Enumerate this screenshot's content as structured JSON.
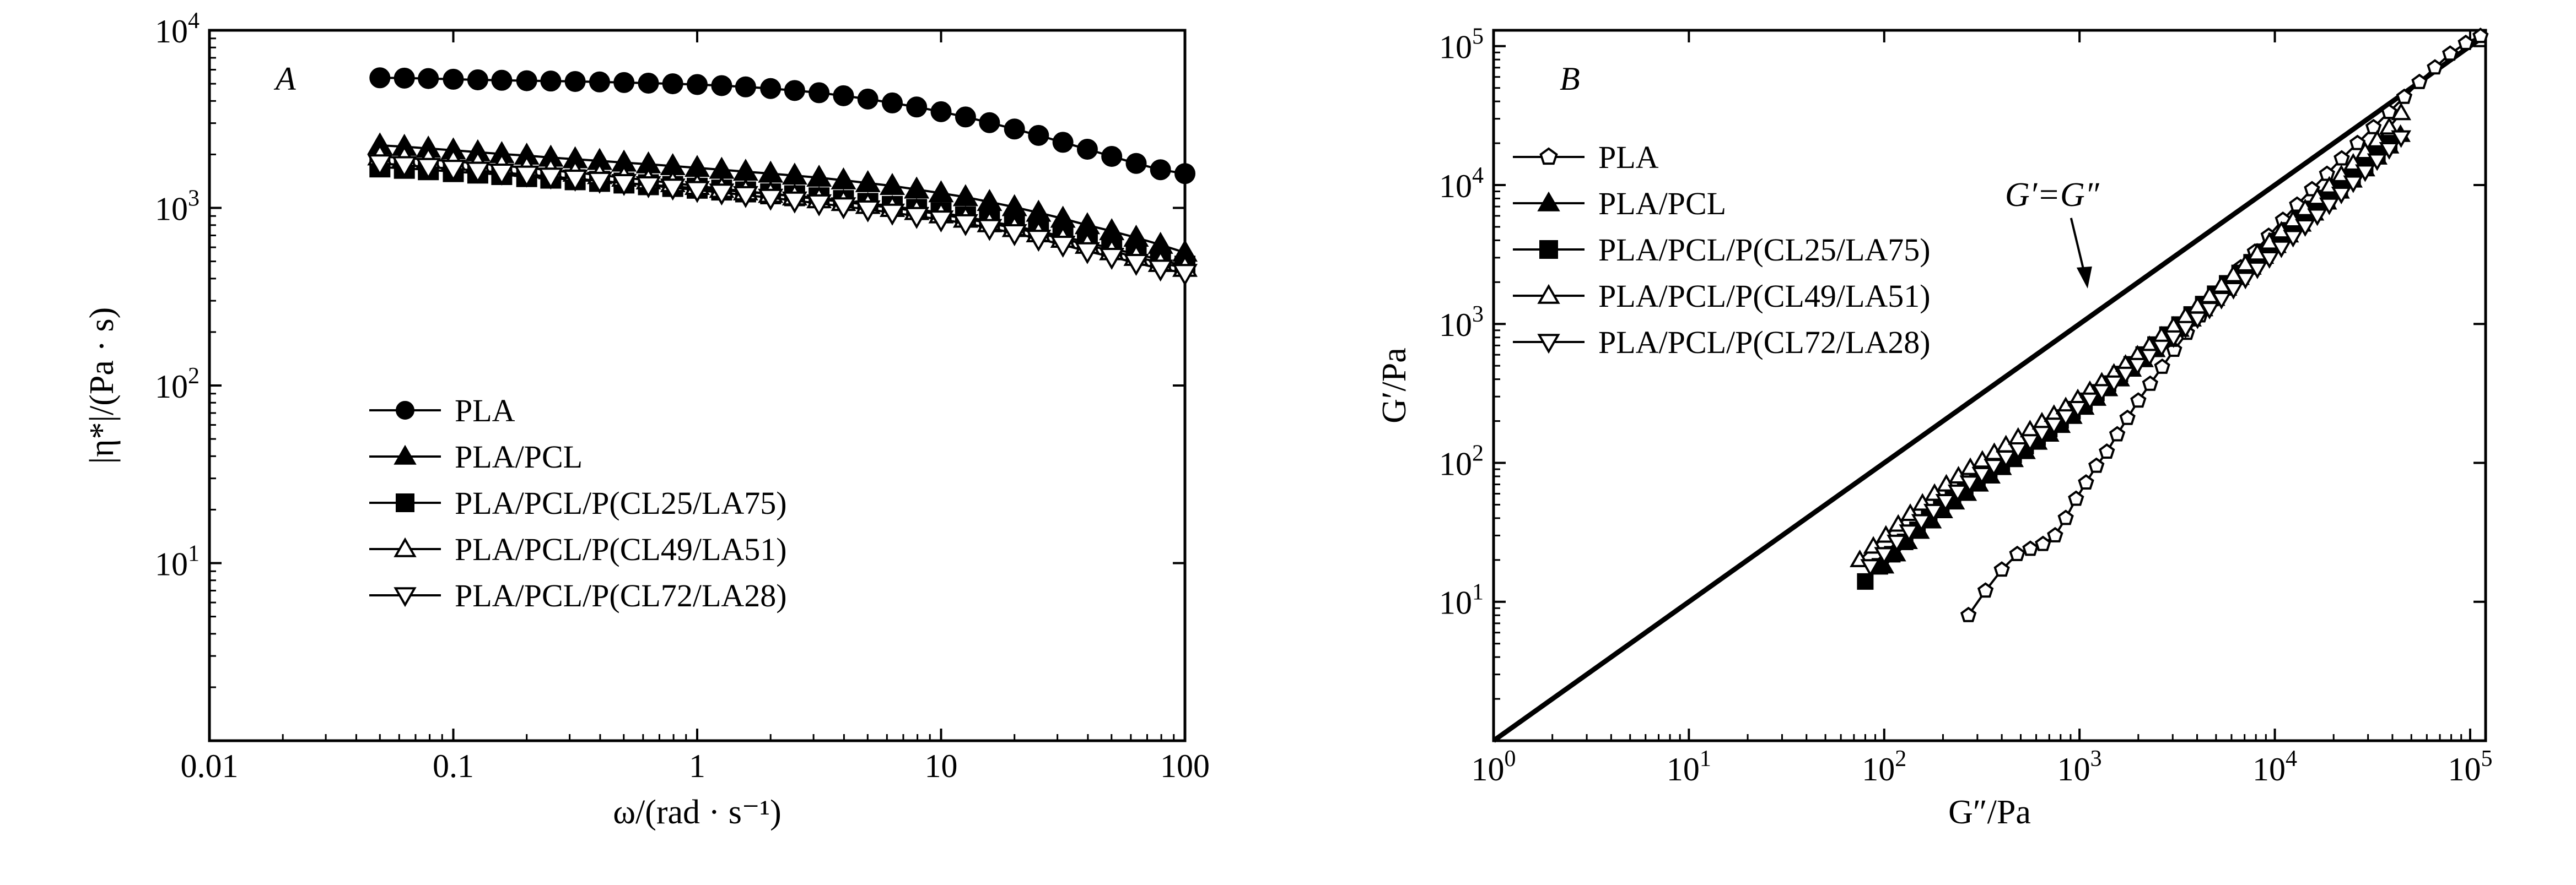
{
  "chart_data": [
    {
      "type": "line",
      "panel_label": "A",
      "xlabel": "ω/(rad · s⁻¹)",
      "ylabel": "|η*|/(Pa · s)",
      "x_scale": "log",
      "y_scale": "log",
      "xlim": [
        0.01,
        100
      ],
      "ylim": [
        1,
        10000
      ],
      "x_ticks": [
        {
          "value": 0.01,
          "label": "0.01"
        },
        {
          "value": 0.1,
          "label": "0.1"
        },
        {
          "value": 1,
          "label": "1"
        },
        {
          "value": 10,
          "label": "10"
        },
        {
          "value": 100,
          "label": "100"
        }
      ],
      "y_ticks": [
        {
          "value": 10,
          "base": "10",
          "exp": "1"
        },
        {
          "value": 100,
          "base": "10",
          "exp": "2"
        },
        {
          "value": 1000,
          "base": "10",
          "exp": "3"
        },
        {
          "value": 10000,
          "base": "10",
          "exp": "4"
        }
      ],
      "grid": false,
      "legend_position": "lower-center",
      "series": [
        {
          "name": "PLA",
          "marker": "circle-filled",
          "x": [
            0.05,
            0.063,
            0.079,
            0.1,
            0.126,
            0.158,
            0.2,
            0.251,
            0.316,
            0.398,
            0.501,
            0.631,
            0.794,
            1,
            1.26,
            1.58,
            2,
            2.51,
            3.16,
            3.98,
            5.01,
            6.31,
            7.94,
            10,
            12.6,
            15.8,
            20,
            25.1,
            31.6,
            39.8,
            50.1,
            63.1,
            79.4,
            100
          ],
          "y": [
            5400,
            5380,
            5350,
            5300,
            5260,
            5230,
            5200,
            5180,
            5150,
            5120,
            5080,
            5040,
            5000,
            4950,
            4880,
            4800,
            4700,
            4580,
            4450,
            4280,
            4100,
            3900,
            3700,
            3480,
            3250,
            3020,
            2780,
            2560,
            2340,
            2140,
            1950,
            1780,
            1640,
            1560
          ]
        },
        {
          "name": "PLA/PCL",
          "marker": "triangle-up-filled",
          "x": [
            0.05,
            0.063,
            0.079,
            0.1,
            0.126,
            0.158,
            0.2,
            0.251,
            0.316,
            0.398,
            0.501,
            0.631,
            0.794,
            1,
            1.26,
            1.58,
            2,
            2.51,
            3.16,
            3.98,
            5.01,
            6.31,
            7.94,
            10,
            12.6,
            15.8,
            20,
            25.1,
            31.6,
            39.8,
            50.1,
            63.1,
            79.4,
            100
          ],
          "y": [
            2250,
            2210,
            2160,
            2110,
            2060,
            2010,
            1970,
            1920,
            1880,
            1840,
            1800,
            1760,
            1720,
            1680,
            1640,
            1600,
            1560,
            1520,
            1480,
            1430,
            1380,
            1330,
            1270,
            1210,
            1150,
            1080,
            1010,
            940,
            870,
            800,
            740,
            680,
            620,
            560
          ]
        },
        {
          "name": "PLA/PCL/P(CL25/LA75)",
          "marker": "square-filled",
          "x": [
            0.05,
            0.063,
            0.079,
            0.1,
            0.126,
            0.158,
            0.2,
            0.251,
            0.316,
            0.398,
            0.501,
            0.631,
            0.794,
            1,
            1.26,
            1.58,
            2,
            2.51,
            3.16,
            3.98,
            5.01,
            6.31,
            7.94,
            10,
            12.6,
            15.8,
            20,
            25.1,
            31.6,
            39.8,
            50.1,
            63.1,
            79.4,
            100
          ],
          "y": [
            1700,
            1670,
            1640,
            1600,
            1570,
            1540,
            1500,
            1470,
            1440,
            1410,
            1380,
            1350,
            1320,
            1290,
            1260,
            1230,
            1200,
            1170,
            1140,
            1100,
            1060,
            1020,
            980,
            940,
            890,
            840,
            790,
            740,
            690,
            640,
            590,
            550,
            510,
            470
          ]
        },
        {
          "name": "PLA/PCL/P(CL49/LA51)",
          "marker": "triangle-up-open",
          "x": [
            0.05,
            0.063,
            0.079,
            0.1,
            0.126,
            0.158,
            0.2,
            0.251,
            0.316,
            0.398,
            0.501,
            0.631,
            0.794,
            1,
            1.26,
            1.58,
            2,
            2.51,
            3.16,
            3.98,
            5.01,
            6.31,
            7.94,
            10,
            12.6,
            15.8,
            20,
            25.1,
            31.6,
            39.8,
            50.1,
            63.1,
            79.4,
            100
          ],
          "y": [
            1950,
            1910,
            1870,
            1830,
            1780,
            1730,
            1680,
            1630,
            1580,
            1530,
            1480,
            1430,
            1380,
            1330,
            1280,
            1240,
            1200,
            1160,
            1120,
            1080,
            1040,
            1000,
            960,
            920,
            870,
            820,
            770,
            720,
            670,
            620,
            570,
            530,
            490,
            460
          ]
        },
        {
          "name": "PLA/PCL/P(CL72/LA28)",
          "marker": "triangle-down-open",
          "x": [
            0.05,
            0.063,
            0.079,
            0.1,
            0.126,
            0.158,
            0.2,
            0.251,
            0.316,
            0.398,
            0.501,
            0.631,
            0.794,
            1,
            1.26,
            1.58,
            2,
            2.51,
            3.16,
            3.98,
            5.01,
            6.31,
            7.94,
            10,
            12.6,
            15.8,
            20,
            25.1,
            31.6,
            39.8,
            50.1,
            63.1,
            79.4,
            100
          ],
          "y": [
            1780,
            1740,
            1700,
            1660,
            1620,
            1580,
            1540,
            1500,
            1460,
            1420,
            1380,
            1340,
            1300,
            1260,
            1220,
            1180,
            1140,
            1100,
            1060,
            1020,
            980,
            940,
            900,
            860,
            820,
            770,
            720,
            670,
            620,
            570,
            530,
            490,
            455,
            430
          ]
        }
      ]
    },
    {
      "type": "line",
      "panel_label": "B",
      "xlabel": "G″/Pa",
      "ylabel": "G′/Pa",
      "x_scale": "log",
      "y_scale": "log",
      "xlim": [
        1,
        120000
      ],
      "ylim": [
        1,
        130000
      ],
      "x_ticks": [
        {
          "value": 1,
          "base": "10",
          "exp": "0"
        },
        {
          "value": 10,
          "base": "10",
          "exp": "1"
        },
        {
          "value": 100,
          "base": "10",
          "exp": "2"
        },
        {
          "value": 1000,
          "base": "10",
          "exp": "3"
        },
        {
          "value": 10000,
          "base": "10",
          "exp": "4"
        },
        {
          "value": 100000,
          "base": "10",
          "exp": "5"
        }
      ],
      "y_ticks": [
        {
          "value": 10,
          "base": "10",
          "exp": "1"
        },
        {
          "value": 100,
          "base": "10",
          "exp": "2"
        },
        {
          "value": 1000,
          "base": "10",
          "exp": "3"
        },
        {
          "value": 10000,
          "base": "10",
          "exp": "4"
        },
        {
          "value": 100000,
          "base": "10",
          "exp": "5"
        }
      ],
      "grid": false,
      "legend_position": "top-left",
      "reference_line": {
        "label": "G′=G″",
        "x": [
          1,
          120000
        ],
        "y": [
          1,
          120000
        ]
      },
      "annotation": {
        "text": "G′=G″",
        "arrow_to": [
          1100,
          1800
        ]
      },
      "series": [
        {
          "name": "PLA",
          "marker": "pentagon-open",
          "x": [
            270,
            330,
            400,
            480,
            560,
            650,
            750,
            850,
            960,
            1080,
            1220,
            1380,
            1560,
            1760,
            2000,
            2300,
            2650,
            3050,
            3550,
            4150,
            4850,
            5700,
            6700,
            7900,
            9300,
            11000,
            13000,
            15500,
            18500,
            22000,
            26500,
            32000,
            38500,
            46000,
            55000,
            66000,
            79000,
            95000,
            113000
          ],
          "y": [
            8,
            12,
            17,
            22,
            24,
            26,
            30,
            40,
            55,
            72,
            95,
            120,
            160,
            210,
            280,
            370,
            490,
            650,
            860,
            1150,
            1500,
            1950,
            2550,
            3300,
            4300,
            5600,
            7200,
            9300,
            12000,
            15500,
            20000,
            26000,
            33500,
            43000,
            55000,
            70000,
            88000,
            105000,
            118000
          ]
        },
        {
          "name": "PLA/PCL",
          "marker": "triangle-up-filled",
          "x": [
            100,
            115,
            132,
            152,
            175,
            200,
            230,
            265,
            305,
            350,
            400,
            460,
            530,
            610,
            700,
            800,
            920,
            1060,
            1220,
            1400,
            1610,
            1850,
            2130,
            2450,
            2820,
            3250,
            3750,
            4300,
            4950,
            5700,
            6600,
            7600,
            8800,
            10200,
            11800,
            13700,
            15900,
            18500,
            21500,
            25000,
            29000,
            33500,
            38500,
            44000
          ],
          "y": [
            18,
            22,
            27,
            32,
            38,
            45,
            52,
            60,
            70,
            80,
            92,
            105,
            120,
            140,
            160,
            185,
            215,
            250,
            290,
            340,
            400,
            470,
            550,
            650,
            770,
            910,
            1080,
            1280,
            1520,
            1800,
            2150,
            2550,
            3050,
            3650,
            4350,
            5200,
            6250,
            7500,
            9000,
            10800,
            13000,
            15800,
            19000,
            23000
          ]
        },
        {
          "name": "PLA/PCL/P(CL25/LA75)",
          "marker": "square-filled",
          "x": [
            80,
            95,
            110,
            128,
            148,
            170,
            196,
            225,
            260,
            300,
            345,
            400,
            460,
            530,
            610,
            700,
            800,
            920,
            1060,
            1220,
            1400,
            1610,
            1850,
            2130,
            2450,
            2820,
            3250,
            3750,
            4300,
            4950,
            5700,
            6600,
            7600,
            8800,
            10200,
            11800,
            13700,
            15900,
            18500,
            21500,
            25000,
            29000,
            33500,
            38500
          ],
          "y": [
            14,
            18,
            22,
            27,
            33,
            40,
            47,
            55,
            64,
            74,
            86,
            99,
            114,
            132,
            152,
            175,
            202,
            235,
            272,
            318,
            372,
            436,
            512,
            602,
            710,
            838,
            990,
            1170,
            1390,
            1650,
            1960,
            2330,
            2780,
            3310,
            3950,
            4720,
            5640,
            6740,
            8060,
            9650,
            11600,
            13900,
            16700,
            20000
          ]
        },
        {
          "name": "PLA/PCL/P(CL49/LA51)",
          "marker": "triangle-up-open",
          "x": [
            75,
            88,
            102,
            118,
            136,
            157,
            181,
            208,
            240,
            276,
            318,
            366,
            420,
            485,
            558,
            642,
            740,
            850,
            980,
            1130,
            1300,
            1500,
            1720,
            1980,
            2280,
            2630,
            3030,
            3490,
            4020,
            4630,
            5330,
            6140,
            7070,
            8140,
            9380,
            10800,
            12400,
            14300,
            16500,
            19000,
            21900,
            25200,
            29000,
            33400,
            38500,
            44300
          ],
          "y": [
            20,
            25,
            30,
            36,
            43,
            51,
            60,
            70,
            80,
            92,
            104,
            118,
            134,
            152,
            172,
            196,
            222,
            252,
            288,
            330,
            380,
            440,
            510,
            595,
            695,
            815,
            960,
            1130,
            1340,
            1590,
            1890,
            2250,
            2690,
            3220,
            3860,
            4640,
            5580,
            6720,
            8100,
            9780,
            11800,
            14300,
            17300,
            21000,
            26000,
            33000
          ]
        },
        {
          "name": "PLA/PCL/P(CL72/LA28)",
          "marker": "triangle-down-open",
          "x": [
            85,
            100,
            116,
            134,
            155,
            179,
            206,
            238,
            274,
            316,
            364,
            420,
            485,
            558,
            642,
            740,
            850,
            980,
            1130,
            1300,
            1500,
            1720,
            1980,
            2280,
            2630,
            3030,
            3490,
            4020,
            4630,
            5330,
            6140,
            7070,
            8140,
            9380,
            10800,
            12400,
            14300,
            16500,
            19000,
            21900,
            25200,
            29000,
            33400,
            38500,
            44300
          ],
          "y": [
            18,
            22,
            27,
            32,
            38,
            45,
            53,
            62,
            72,
            83,
            95,
            109,
            125,
            143,
            164,
            188,
            216,
            248,
            285,
            328,
            378,
            437,
            506,
            588,
            684,
            798,
            933,
            1090,
            1280,
            1510,
            1780,
            2110,
            2500,
            2970,
            3540,
            4220,
            5040,
            6020,
            7210,
            8640,
            10400,
            12500,
            15000,
            18100,
            22000
          ]
        }
      ]
    }
  ]
}
